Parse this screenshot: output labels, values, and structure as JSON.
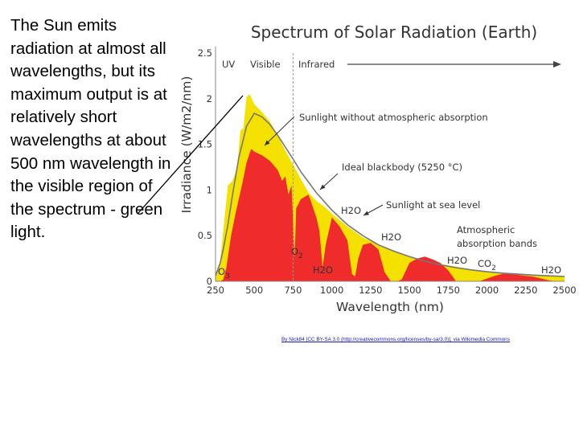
{
  "slide": {
    "text": "The Sun emits radiation at almost all wavelengths, but its maximum output is at relatively short wavelengths at about 500 nm wavelength in the visible region of the spectrum - green light."
  },
  "attribution": "By Nick84 [CC BY-SA 3.0 (http://creativecommons.org/licenses/by-sa/3.0)], via Wikimedia Commons",
  "colors": {
    "toa": "#f5e100",
    "sea_level": "#ef2b2b",
    "blackbody": "#777777",
    "annotation": "#c8a400",
    "gas": "#d63030",
    "pointer": "#000000"
  },
  "chart_data": {
    "type": "area",
    "title": "Spectrum of Solar Radiation (Earth)",
    "xlabel": "Wavelength (nm)",
    "ylabel": "Irradiance (W/m2/nm)",
    "xlim": [
      250,
      2500
    ],
    "ylim": [
      0,
      2.5
    ],
    "xticks": [
      "250",
      "500",
      "750",
      "1000",
      "1250",
      "1500",
      "1750",
      "2000",
      "2250",
      "2500"
    ],
    "yticks": [
      "0",
      "0.5",
      "1",
      "1.5",
      "2",
      "2.5"
    ],
    "region_labels": [
      "UV",
      "Visible",
      "Infrared"
    ],
    "visible_boundary_nm": 750,
    "series": [
      {
        "name": "Sunlight without atmospheric absorption",
        "x": [
          250,
          280,
          300,
          330,
          360,
          390,
          410,
          430,
          450,
          470,
          500,
          550,
          600,
          650,
          700,
          750,
          800,
          850,
          900,
          950,
          1000,
          1100,
          1200,
          1300,
          1400,
          1500,
          1600,
          1700,
          1800,
          1900,
          2000,
          2100,
          2200,
          2300,
          2400,
          2500
        ],
        "y": [
          0.06,
          0.22,
          0.55,
          1.05,
          1.1,
          1.25,
          1.65,
          1.68,
          2.02,
          2.05,
          1.94,
          1.85,
          1.75,
          1.6,
          1.43,
          1.28,
          1.12,
          0.97,
          0.88,
          0.82,
          0.74,
          0.6,
          0.48,
          0.4,
          0.33,
          0.27,
          0.23,
          0.19,
          0.16,
          0.13,
          0.11,
          0.095,
          0.08,
          0.068,
          0.058,
          0.05
        ]
      },
      {
        "name": "Ideal blackbody (5250 °C)",
        "x": [
          250,
          280,
          300,
          330,
          360,
          400,
          450,
          500,
          550,
          600,
          650,
          700,
          750,
          800,
          900,
          1000,
          1100,
          1200,
          1300,
          1400,
          1500,
          1600,
          1700,
          1800,
          1900,
          2000,
          2100,
          2200,
          2300,
          2400,
          2500
        ],
        "y": [
          0.06,
          0.2,
          0.35,
          0.62,
          0.95,
          1.35,
          1.7,
          1.84,
          1.8,
          1.72,
          1.6,
          1.47,
          1.34,
          1.2,
          0.97,
          0.78,
          0.62,
          0.5,
          0.4,
          0.33,
          0.27,
          0.22,
          0.18,
          0.15,
          0.125,
          0.105,
          0.09,
          0.078,
          0.068,
          0.06,
          0.053
        ]
      },
      {
        "name": "Sunlight at sea level",
        "x": [
          280,
          300,
          320,
          350,
          380,
          400,
          420,
          450,
          480,
          500,
          550,
          600,
          650,
          680,
          700,
          720,
          740,
          760,
          770,
          800,
          850,
          900,
          920,
          940,
          960,
          1000,
          1050,
          1100,
          1130,
          1150,
          1170,
          1200,
          1250,
          1300,
          1340,
          1380,
          1420,
          1450,
          1500,
          1550,
          1600,
          1650,
          1700,
          1750,
          1780,
          1800,
          1850,
          1900,
          1950,
          2000,
          2050,
          2100,
          2150,
          2200,
          2250,
          2300,
          2350,
          2400,
          2450,
          2500
        ],
        "y": [
          0.0,
          0.02,
          0.15,
          0.5,
          0.75,
          0.9,
          1.05,
          1.3,
          1.45,
          1.42,
          1.38,
          1.32,
          1.22,
          1.1,
          1.15,
          0.95,
          1.05,
          0.25,
          0.8,
          0.9,
          0.95,
          0.7,
          0.55,
          0.15,
          0.4,
          0.7,
          0.6,
          0.45,
          0.08,
          0.05,
          0.25,
          0.4,
          0.42,
          0.35,
          0.1,
          0.0,
          0.0,
          0.02,
          0.2,
          0.25,
          0.27,
          0.24,
          0.2,
          0.12,
          0.05,
          0.0,
          0.0,
          0.0,
          0.0,
          0.03,
          0.06,
          0.08,
          0.08,
          0.07,
          0.06,
          0.05,
          0.03,
          0.01,
          0.0,
          0.0
        ]
      }
    ],
    "annotations": [
      {
        "text": "Sunlight without atmospheric absorption",
        "color_key": "annotation"
      },
      {
        "text": "Ideal blackbody (5250 °C)",
        "color_key": "annotation"
      },
      {
        "text": "Sunlight at sea level",
        "color_key": "annotation"
      },
      {
        "text": "Atmospheric absorption bands",
        "color_key": "gas"
      }
    ],
    "absorption_labels": [
      {
        "text": "O3",
        "wavelength_nm": 260
      },
      {
        "text": "O2",
        "wavelength_nm": 760
      },
      {
        "text": "H2O",
        "wavelength_nm": 900
      },
      {
        "text": "H2O",
        "wavelength_nm": 1100
      },
      {
        "text": "H2O",
        "wavelength_nm": 1380
      },
      {
        "text": "H2O",
        "wavelength_nm": 1870
      },
      {
        "text": "CO2",
        "wavelength_nm": 2000
      },
      {
        "text": "H2O",
        "wavelength_nm": 2450
      }
    ]
  }
}
